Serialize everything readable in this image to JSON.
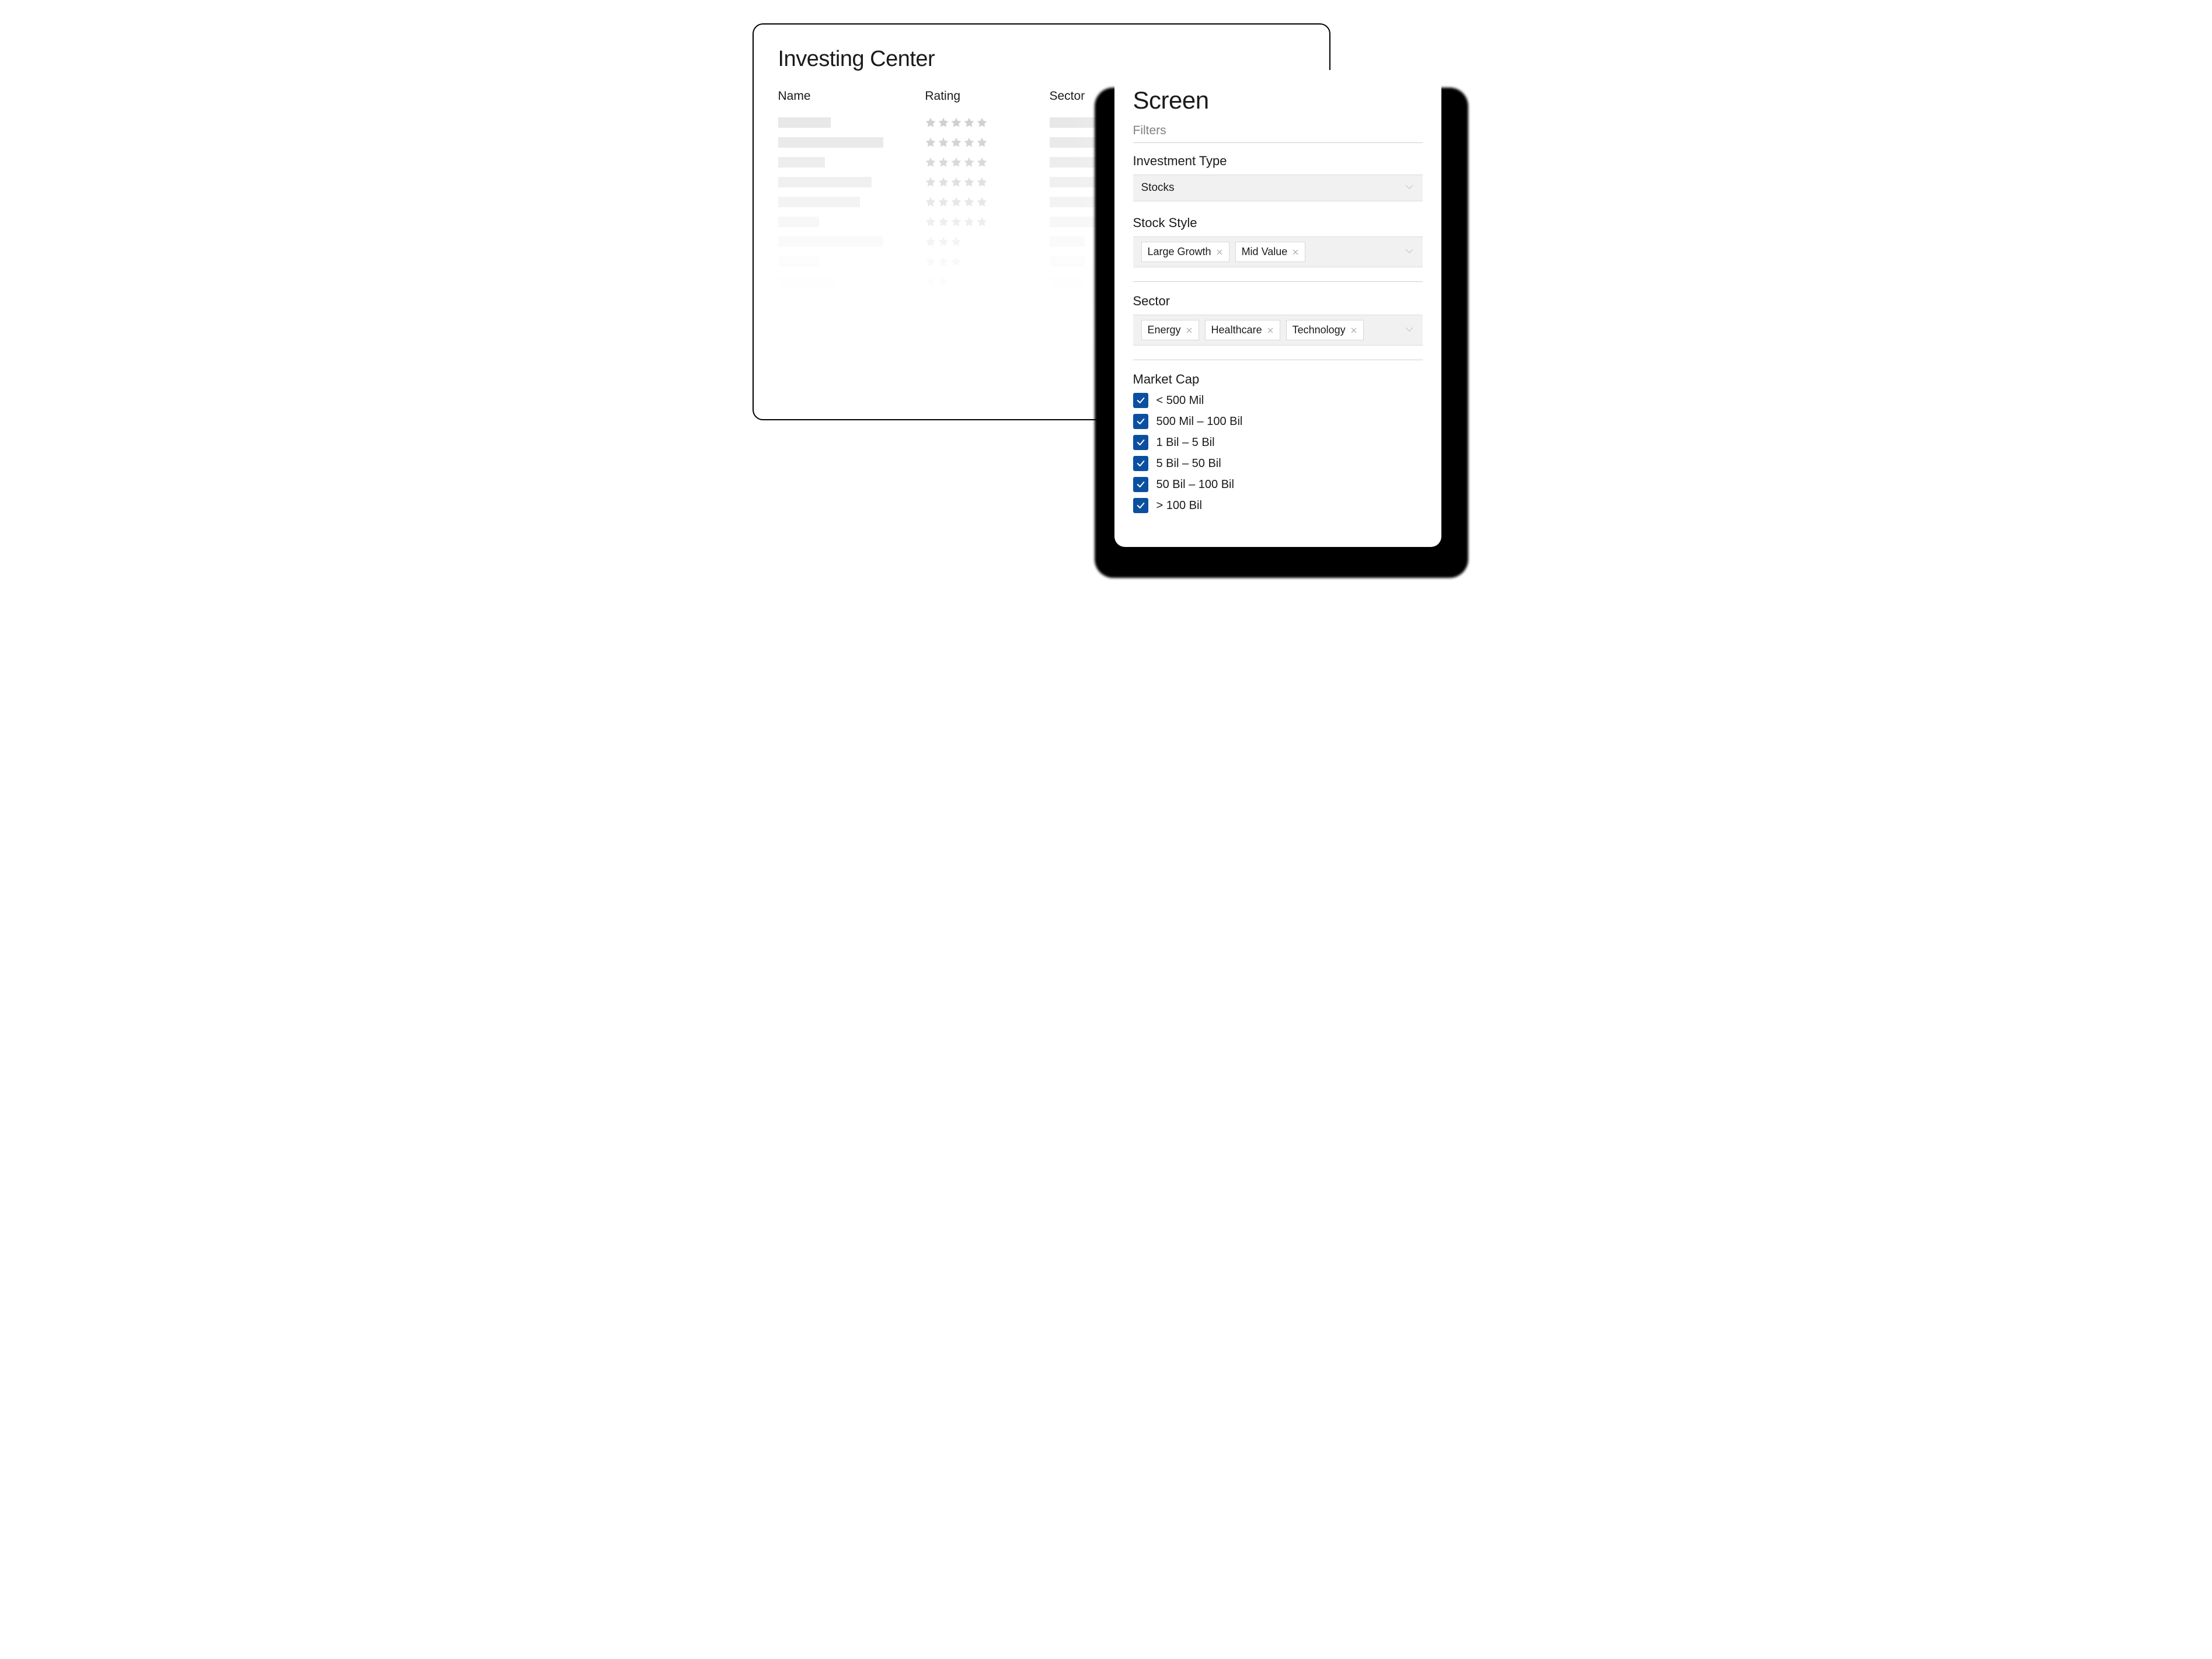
{
  "colors": {
    "text": "#1a1a1a",
    "muted": "#808080",
    "skeleton": "#e8e8e8",
    "star": "#d0d0d0",
    "field_bg": "#f1f1f1",
    "field_border": "#dcdcdc",
    "tag_border": "#d8d8d8",
    "divider": "#d0d0d0",
    "checkbox_fill": "#0b4fa0",
    "checkbox_check": "#ffffff",
    "back_border": "#000000",
    "shadow": "#000000",
    "background": "#ffffff"
  },
  "back_card": {
    "title": "Investing Center",
    "columns": {
      "name": "Name",
      "rating": "Rating",
      "sector": "Sector"
    },
    "rows": [
      {
        "name_width": 90,
        "stars": 5,
        "opacity": 1.0,
        "sector_width": 120
      },
      {
        "name_width": 180,
        "stars": 5,
        "opacity": 0.9,
        "sector_width": 120
      },
      {
        "name_width": 80,
        "stars": 5,
        "opacity": 0.8,
        "sector_width": 80
      },
      {
        "name_width": 160,
        "stars": 5,
        "opacity": 0.65,
        "sector_width": 100
      },
      {
        "name_width": 140,
        "stars": 5,
        "opacity": 0.5,
        "sector_width": 90
      },
      {
        "name_width": 70,
        "stars": 5,
        "opacity": 0.35,
        "sector_width": 90
      },
      {
        "name_width": 180,
        "stars": 3,
        "opacity": 0.22,
        "sector_width": 60
      },
      {
        "name_width": 70,
        "stars": 3,
        "opacity": 0.12,
        "sector_width": 60
      },
      {
        "name_width": 100,
        "stars": 2,
        "opacity": 0.05,
        "sector_width": 60
      }
    ]
  },
  "front_card": {
    "title": "Screen",
    "filters_label": "Filters",
    "investment_type": {
      "label": "Investment Type",
      "selected": "Stocks"
    },
    "stock_style": {
      "label": "Stock Style",
      "tags": [
        "Large Growth",
        "Mid Value"
      ]
    },
    "sector": {
      "label": "Sector",
      "tags": [
        "Energy",
        "Healthcare",
        "Technology"
      ]
    },
    "market_cap": {
      "label": "Market Cap",
      "options": [
        {
          "label": "< 500 Mil",
          "checked": true
        },
        {
          "label": "500 Mil – 100 Bil",
          "checked": true
        },
        {
          "label": "1 Bil – 5 Bil",
          "checked": true
        },
        {
          "label": "5 Bil – 50 Bil",
          "checked": true
        },
        {
          "label": "50 Bil – 100 Bil",
          "checked": true
        },
        {
          "label": "> 100 Bil",
          "checked": true
        }
      ]
    }
  }
}
